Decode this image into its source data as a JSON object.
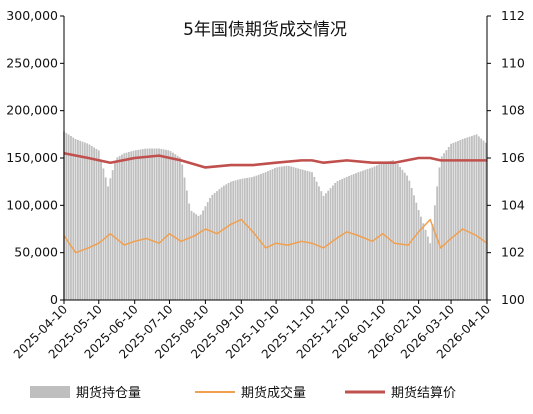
{
  "chart_data": {
    "type": "bar+line",
    "title": "5年国债期货成交情况",
    "x_range": [
      "2025-04-10",
      "2026-04-10"
    ],
    "x_tick_labels": [
      "2025-04-10",
      "2025-05-10",
      "2025-06-10",
      "2025-07-10",
      "2025-08-10",
      "2025-09-10",
      "2025-10-10",
      "2025-11-10",
      "2025-12-10",
      "2026-01-10",
      "2026-02-10",
      "2026-03-10",
      "2026-04-10"
    ],
    "y_left": {
      "min": 0,
      "max": 300000,
      "ticks": [
        "0",
        "50,000",
        "100,000",
        "150,000",
        "200,000",
        "250,000",
        "300,000"
      ]
    },
    "y_right": {
      "min": 100,
      "max": 112,
      "ticks": [
        "100",
        "102",
        "104",
        "106",
        "108",
        "110",
        "112"
      ]
    },
    "grid": false,
    "legend_position": "bottom",
    "series": [
      {
        "name": "期货持仓量",
        "type": "bar",
        "axis": "left",
        "color": "#bfbfbf",
        "points": [
          [
            "2025-04-10",
            178000
          ],
          [
            "2025-04-20",
            170000
          ],
          [
            "2025-05-01",
            165000
          ],
          [
            "2025-05-10",
            158000
          ],
          [
            "2025-05-18",
            120000
          ],
          [
            "2025-05-25",
            150000
          ],
          [
            "2025-06-01",
            155000
          ],
          [
            "2025-06-10",
            158000
          ],
          [
            "2025-06-20",
            160000
          ],
          [
            "2025-07-01",
            160000
          ],
          [
            "2025-07-10",
            158000
          ],
          [
            "2025-07-20",
            150000
          ],
          [
            "2025-07-28",
            95000
          ],
          [
            "2025-08-05",
            88000
          ],
          [
            "2025-08-15",
            110000
          ],
          [
            "2025-08-25",
            120000
          ],
          [
            "2025-09-01",
            125000
          ],
          [
            "2025-09-10",
            128000
          ],
          [
            "2025-09-20",
            130000
          ],
          [
            "2025-10-01",
            135000
          ],
          [
            "2025-10-10",
            140000
          ],
          [
            "2025-10-20",
            142000
          ],
          [
            "2025-11-01",
            138000
          ],
          [
            "2025-11-10",
            135000
          ],
          [
            "2025-11-20",
            110000
          ],
          [
            "2025-12-01",
            125000
          ],
          [
            "2025-12-10",
            130000
          ],
          [
            "2025-12-20",
            135000
          ],
          [
            "2026-01-01",
            140000
          ],
          [
            "2026-01-10",
            145000
          ],
          [
            "2026-01-20",
            148000
          ],
          [
            "2026-02-01",
            130000
          ],
          [
            "2026-02-10",
            95000
          ],
          [
            "2026-02-20",
            60000
          ],
          [
            "2026-03-01",
            150000
          ],
          [
            "2026-03-10",
            165000
          ],
          [
            "2026-03-20",
            170000
          ],
          [
            "2026-04-01",
            175000
          ],
          [
            "2026-04-10",
            165000
          ]
        ]
      },
      {
        "name": "期货成交量",
        "type": "line",
        "axis": "left",
        "color": "#f0a050",
        "points": [
          [
            "2025-04-10",
            68000
          ],
          [
            "2025-04-20",
            50000
          ],
          [
            "2025-05-01",
            55000
          ],
          [
            "2025-05-10",
            60000
          ],
          [
            "2025-05-20",
            70000
          ],
          [
            "2025-06-01",
            58000
          ],
          [
            "2025-06-10",
            62000
          ],
          [
            "2025-06-20",
            65000
          ],
          [
            "2025-07-01",
            60000
          ],
          [
            "2025-07-10",
            70000
          ],
          [
            "2025-07-20",
            62000
          ],
          [
            "2025-08-01",
            68000
          ],
          [
            "2025-08-10",
            75000
          ],
          [
            "2025-08-20",
            70000
          ],
          [
            "2025-09-01",
            80000
          ],
          [
            "2025-09-10",
            85000
          ],
          [
            "2025-09-20",
            72000
          ],
          [
            "2025-10-01",
            55000
          ],
          [
            "2025-10-10",
            60000
          ],
          [
            "2025-10-20",
            58000
          ],
          [
            "2025-11-01",
            62000
          ],
          [
            "2025-11-10",
            60000
          ],
          [
            "2025-11-20",
            55000
          ],
          [
            "2025-12-01",
            65000
          ],
          [
            "2025-12-10",
            72000
          ],
          [
            "2025-12-20",
            68000
          ],
          [
            "2026-01-01",
            62000
          ],
          [
            "2026-01-10",
            70000
          ],
          [
            "2026-01-20",
            60000
          ],
          [
            "2026-02-01",
            58000
          ],
          [
            "2026-02-10",
            72000
          ],
          [
            "2026-02-20",
            85000
          ],
          [
            "2026-03-01",
            55000
          ],
          [
            "2026-03-10",
            65000
          ],
          [
            "2026-03-20",
            75000
          ],
          [
            "2026-04-01",
            68000
          ],
          [
            "2026-04-10",
            60000
          ]
        ]
      },
      {
        "name": "期货结算价",
        "type": "line",
        "axis": "right",
        "color": "#c0504d",
        "points": [
          [
            "2025-04-10",
            106.2
          ],
          [
            "2025-05-01",
            106.0
          ],
          [
            "2025-05-20",
            105.8
          ],
          [
            "2025-06-10",
            106.0
          ],
          [
            "2025-07-01",
            106.1
          ],
          [
            "2025-07-20",
            105.9
          ],
          [
            "2025-08-10",
            105.6
          ],
          [
            "2025-09-01",
            105.7
          ],
          [
            "2025-09-20",
            105.7
          ],
          [
            "2025-10-10",
            105.8
          ],
          [
            "2025-11-01",
            105.9
          ],
          [
            "2025-11-10",
            105.9
          ],
          [
            "2025-11-20",
            105.8
          ],
          [
            "2025-12-10",
            105.9
          ],
          [
            "2026-01-01",
            105.8
          ],
          [
            "2026-01-20",
            105.8
          ],
          [
            "2026-02-10",
            106.0
          ],
          [
            "2026-02-20",
            106.0
          ],
          [
            "2026-03-01",
            105.9
          ],
          [
            "2026-03-20",
            105.9
          ],
          [
            "2026-04-10",
            105.9
          ]
        ]
      }
    ]
  }
}
